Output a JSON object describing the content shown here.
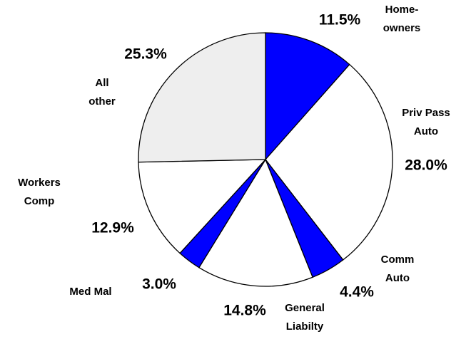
{
  "chart_data": {
    "type": "pie",
    "categories": [
      "Home-\nowners",
      "Priv Pass\nAuto",
      "Comm\nAuto",
      "General\nLiabilty",
      "Med Mal",
      "Workers\nComp",
      "All\nother"
    ],
    "values": [
      11.5,
      28.0,
      4.4,
      14.8,
      3.0,
      12.9,
      25.3
    ],
    "value_labels": [
      "11.5%",
      "28.0%",
      "4.4%",
      "14.8%",
      "3.0%",
      "12.9%",
      "25.3%"
    ],
    "colors": [
      "#0000ff",
      "#ffffff",
      "#0000ff",
      "#ffffff",
      "#0000ff",
      "#ffffff",
      "#eeeeee"
    ]
  }
}
